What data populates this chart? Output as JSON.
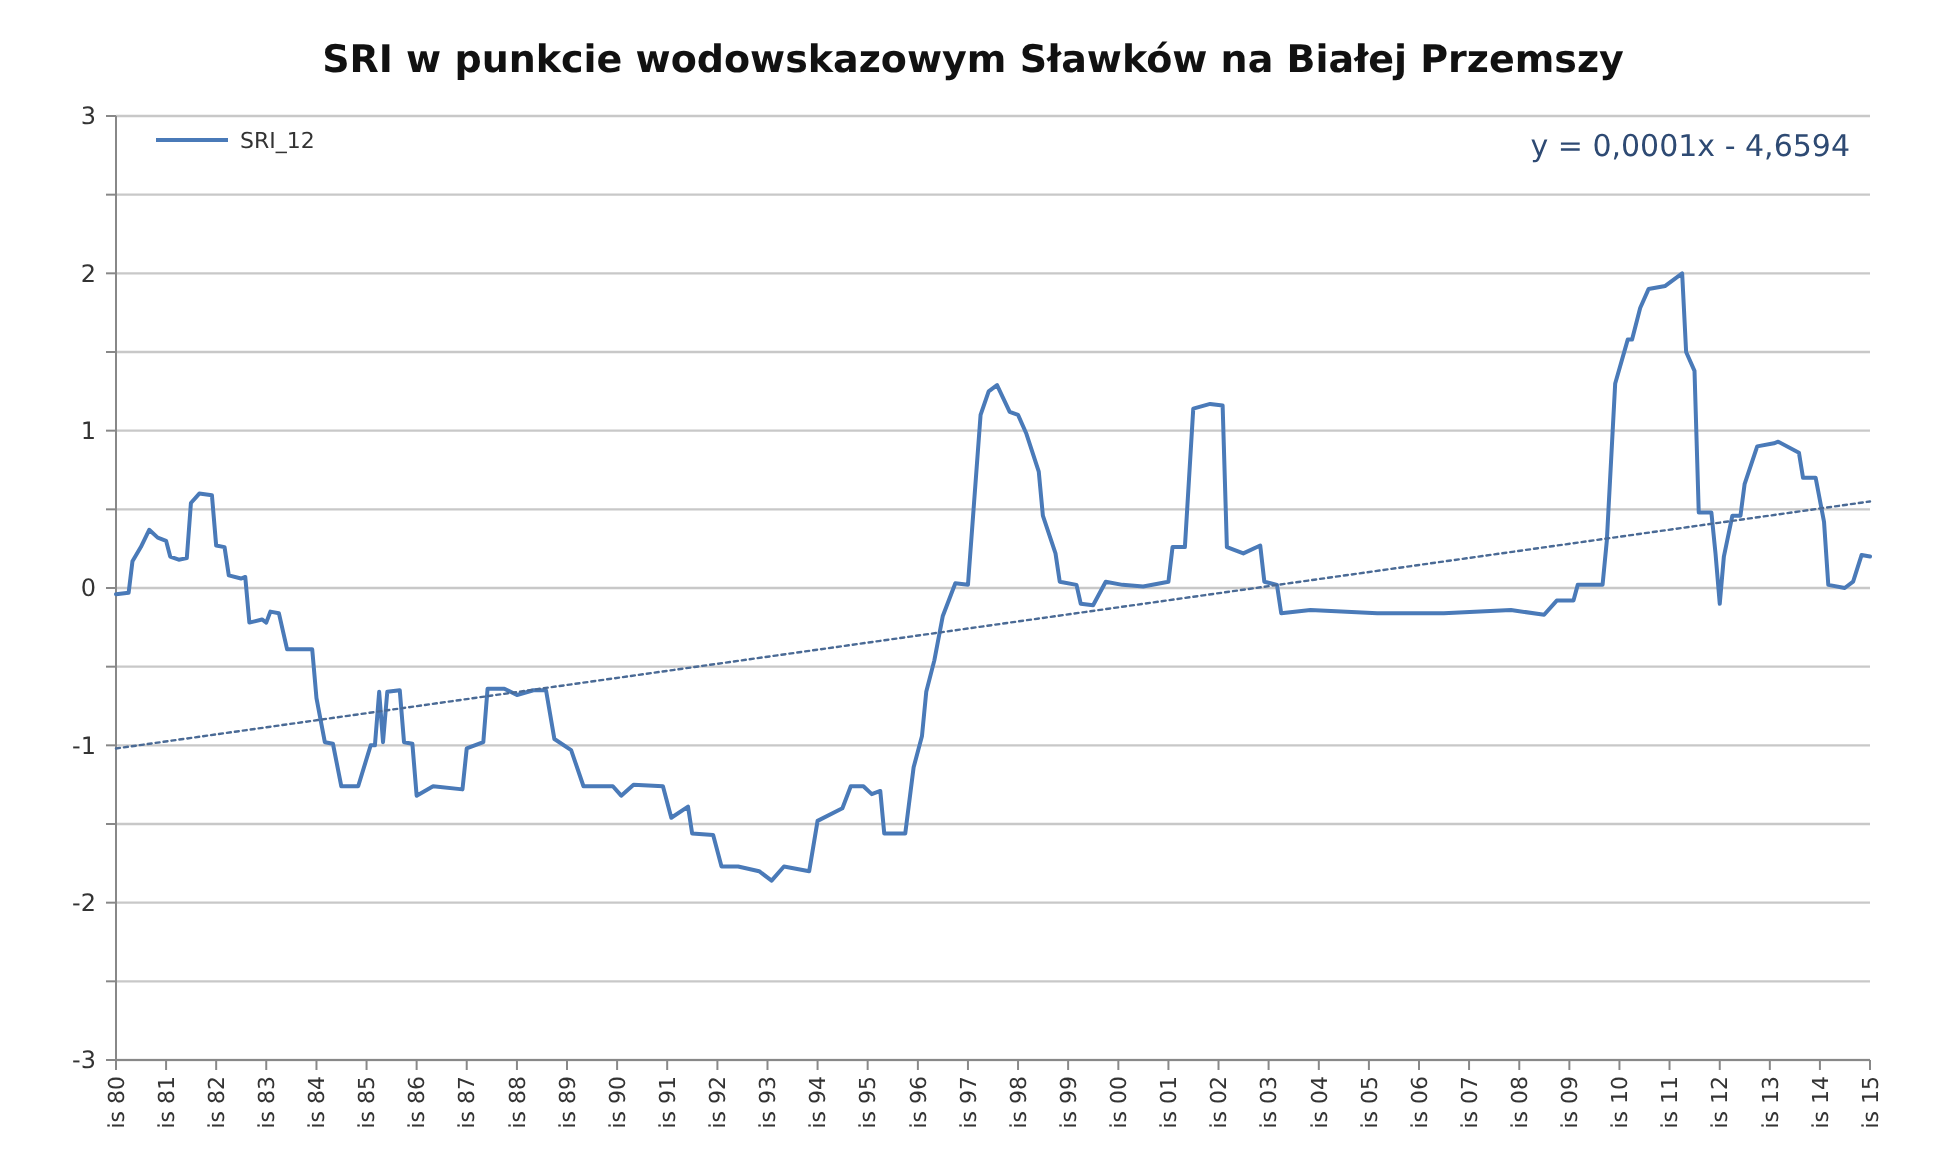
{
  "chart_data": {
    "type": "line",
    "title": "SRI w punkcie wodowskazowym Sławków na Białej Przemszy",
    "xlim": [
      "1980-11",
      "2015-11"
    ],
    "xticks": [
      {
        "value": "1980-11",
        "label": "is 80"
      },
      {
        "value": "1981-11",
        "label": "is 81"
      },
      {
        "value": "1982-11",
        "label": "is 82"
      },
      {
        "value": "1983-11",
        "label": "is 83"
      },
      {
        "value": "1984-11",
        "label": "is 84"
      },
      {
        "value": "1985-11",
        "label": "is 85"
      },
      {
        "value": "1986-11",
        "label": "is 86"
      },
      {
        "value": "1987-11",
        "label": "is 87"
      },
      {
        "value": "1988-11",
        "label": "is 88"
      },
      {
        "value": "1989-11",
        "label": "is 89"
      },
      {
        "value": "1990-11",
        "label": "is 90"
      },
      {
        "value": "1991-11",
        "label": "is 91"
      },
      {
        "value": "1992-11",
        "label": "is 92"
      },
      {
        "value": "1993-11",
        "label": "is 93"
      },
      {
        "value": "1994-11",
        "label": "is 94"
      },
      {
        "value": "1995-11",
        "label": "is 95"
      },
      {
        "value": "1996-11",
        "label": "is 96"
      },
      {
        "value": "1997-11",
        "label": "is 97"
      },
      {
        "value": "1998-11",
        "label": "is 98"
      },
      {
        "value": "1999-11",
        "label": "is 99"
      },
      {
        "value": "2000-11",
        "label": "is 00"
      },
      {
        "value": "2001-11",
        "label": "is 01"
      },
      {
        "value": "2002-11",
        "label": "is 02"
      },
      {
        "value": "2003-11",
        "label": "is 03"
      },
      {
        "value": "2004-11",
        "label": "is 04"
      },
      {
        "value": "2005-11",
        "label": "is 05"
      },
      {
        "value": "2006-11",
        "label": "is 06"
      },
      {
        "value": "2007-11",
        "label": "is 07"
      },
      {
        "value": "2008-11",
        "label": "is 08"
      },
      {
        "value": "2009-11",
        "label": "is 09"
      },
      {
        "value": "2010-11",
        "label": "is 10"
      },
      {
        "value": "2011-11",
        "label": "is 11"
      },
      {
        "value": "2012-11",
        "label": "is 12"
      },
      {
        "value": "2013-11",
        "label": "is 13"
      },
      {
        "value": "2014-11",
        "label": "is 14"
      },
      {
        "value": "2015-11",
        "label": "is 15"
      }
    ],
    "ylim": [
      -3,
      3
    ],
    "yticks": [
      -3,
      -2,
      -1,
      0,
      1,
      2,
      3,
      {
        "value": -2.5,
        "label": null
      },
      {
        "value": -1.5,
        "label": null
      },
      {
        "value": -0.5,
        "label": null
      },
      {
        "value": 0.5,
        "label": null
      },
      {
        "value": 1.5,
        "label": null
      },
      {
        "value": 2.5,
        "label": null
      }
    ],
    "grid": "y",
    "legend": "top left",
    "marker": "none",
    "annotations": [
      "y = 0,0001x - 4,6594"
    ],
    "series": [
      {
        "name": "SRI_12",
        "color": "#4a7ab8",
        "line_style": "solid",
        "x": [
          "1980-11",
          "1981-02",
          "1981-03",
          "1981-05",
          "1981-07",
          "1981-09",
          "1981-11",
          "1981-12",
          "1982-02",
          "1982-04",
          "1982-05",
          "1982-07",
          "1982-10",
          "1982-11",
          "1983-01",
          "1983-02",
          "1983-05",
          "1983-06",
          "1983-07",
          "1983-10",
          "1983-11",
          "1983-12",
          "1984-02",
          "1984-04",
          "1984-10",
          "1984-11",
          "1985-01",
          "1985-03",
          "1985-05",
          "1985-09",
          "1985-12",
          "1986-01",
          "1986-02",
          "1986-03",
          "1986-04",
          "1986-07",
          "1986-08",
          "1986-10",
          "1986-11",
          "1987-03",
          "1987-10",
          "1987-11",
          "1988-03",
          "1988-04",
          "1988-08",
          "1988-11",
          "1989-03",
          "1989-06",
          "1989-08",
          "1989-12",
          "1990-03",
          "1990-10",
          "1990-12",
          "1991-03",
          "1991-10",
          "1991-12",
          "1992-04",
          "1992-05",
          "1992-10",
          "1992-12",
          "1993-04",
          "1993-09",
          "1993-12",
          "1994-03",
          "1994-09",
          "1994-11",
          "1995-05",
          "1995-07",
          "1995-10",
          "1995-12",
          "1996-02",
          "1996-03",
          "1996-08",
          "1996-10",
          "1996-12",
          "1997-01",
          "1997-03",
          "1997-05",
          "1997-08",
          "1997-11",
          "1998-02",
          "1998-04",
          "1998-06",
          "1998-09",
          "1998-11",
          "1999-01",
          "1999-04",
          "1999-05",
          "1999-08",
          "1999-09",
          "2000-01",
          "2000-02",
          "2000-05",
          "2000-08",
          "2000-12",
          "2001-05",
          "2001-11",
          "2001-12",
          "2002-03",
          "2002-05",
          "2002-09",
          "2002-12",
          "2003-01",
          "2003-05",
          "2003-09",
          "2003-10",
          "2004-01",
          "2004-02",
          "2004-09",
          "2006-01",
          "2007-05",
          "2008-09",
          "2009-05",
          "2009-08",
          "2009-12",
          "2010-01",
          "2010-07",
          "2010-08",
          "2010-10",
          "2011-01",
          "2011-02",
          "2011-04",
          "2011-06",
          "2011-10",
          "2012-02",
          "2012-03",
          "2012-05",
          "2012-06",
          "2012-09",
          "2012-10",
          "2012-11",
          "2012-12",
          "2013-02",
          "2013-04",
          "2013-05",
          "2013-08",
          "2013-12",
          "2014-01",
          "2014-06",
          "2014-07",
          "2014-10",
          "2014-12",
          "2015-01",
          "2015-05",
          "2015-07",
          "2015-09",
          "2015-11"
        ],
        "values": [
          -0.04,
          -0.03,
          0.17,
          0.26,
          0.37,
          0.32,
          0.3,
          0.2,
          0.18,
          0.19,
          0.54,
          0.6,
          0.59,
          0.27,
          0.26,
          0.08,
          0.06,
          0.07,
          -0.22,
          -0.2,
          -0.22,
          -0.15,
          -0.16,
          -0.39,
          -0.39,
          -0.7,
          -0.98,
          -0.99,
          -1.26,
          -1.26,
          -1,
          -1,
          -0.66,
          -0.98,
          -0.66,
          -0.65,
          -0.98,
          -0.99,
          -1.32,
          -1.26,
          -1.28,
          -1.02,
          -0.98,
          -0.64,
          -0.64,
          -0.68,
          -0.65,
          -0.65,
          -0.96,
          -1.03,
          -1.26,
          -1.26,
          -1.32,
          -1.25,
          -1.26,
          -1.46,
          -1.39,
          -1.56,
          -1.57,
          -1.77,
          -1.77,
          -1.8,
          -1.86,
          -1.77,
          -1.8,
          -1.48,
          -1.4,
          -1.26,
          -1.26,
          -1.31,
          -1.29,
          -1.56,
          -1.56,
          -1.14,
          -0.94,
          -0.66,
          -0.46,
          -0.18,
          0.03,
          0.02,
          1.1,
          1.25,
          1.29,
          1.12,
          1.1,
          0.98,
          0.74,
          0.46,
          0.22,
          0.04,
          0.02,
          -0.1,
          -0.11,
          0.04,
          0.02,
          0.01,
          0.04,
          0.26,
          0.26,
          1.14,
          1.17,
          1.16,
          0.26,
          0.22,
          0.27,
          0.04,
          0.02,
          -0.16,
          -0.14,
          -0.16,
          -0.16,
          -0.14,
          -0.17,
          -0.08,
          -0.08,
          0.02,
          0.02,
          0.3,
          1.3,
          1.58,
          1.58,
          1.78,
          1.9,
          1.92,
          2,
          1.5,
          1.38,
          0.48,
          0.48,
          0.22,
          -0.1,
          0.2,
          0.46,
          0.46,
          0.66,
          0.9,
          0.92,
          0.93,
          0.86,
          0.7,
          0.7,
          0.42,
          0.02,
          0,
          0.04,
          0.21,
          0.2
        ]
      },
      {
        "color": "#4a6a95",
        "line_style": "dotted",
        "x": [
          "1980-11",
          "2015-11"
        ],
        "values": [
          -1.02,
          0.55
        ]
      }
    ]
  }
}
